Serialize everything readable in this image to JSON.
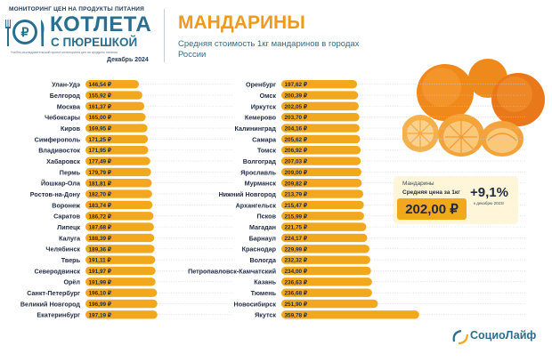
{
  "header": {
    "monitoring": "МОНИТОРИНГ ЦЕН НА ПРОДУКТЫ ПИТАНИЯ",
    "brand_title": "КОТЛЕТА",
    "brand_subtitle": "С ПЮРЕШКОЙ",
    "logo_symbol": "₽",
    "fineprint": "Учебно-исследовательский проект мониторинга цен на продукты питания",
    "date": "Декабрь 2024"
  },
  "product": {
    "title": "МАНДАРИНЫ",
    "subtitle": "Средняя стоимость 1кг мандаринов в городах России"
  },
  "info": {
    "label": "Мандарины",
    "sublabel": "Средняя цена за 1кг",
    "price": "202,00 ₽",
    "change": "+9,1%",
    "change_note": "к декабрю 2023г"
  },
  "footer": {
    "brand": "СоциоЛайф"
  },
  "colors": {
    "bar": "#f2a81d",
    "accent": "#ee9a1e",
    "brand": "#2a6f8f",
    "text": "#1f2a44"
  },
  "chart_data": {
    "type": "bar",
    "orientation": "horizontal",
    "unit": "₽",
    "columns": [
      {
        "categories": [
          "Улан-Удэ",
          "Белгород",
          "Москва",
          "Чебоксары",
          "Киров",
          "Симферополь",
          "Владивосток",
          "Хабаровск",
          "Пермь",
          "Йошкар-Ола",
          "Ростов-на-Дону",
          "Воронеж",
          "Саратов",
          "Липецк",
          "Калуга",
          "Челябинск",
          "Тверь",
          "Северодвинск",
          "Орёл",
          "Санкт-Петербург",
          "Великий Новгород",
          "Екатеринбург"
        ],
        "values": [
          146.54,
          155.92,
          161.37,
          165.0,
          169.95,
          171.25,
          171.95,
          177.49,
          179.79,
          181.81,
          182.7,
          183.74,
          186.72,
          187.68,
          188.39,
          189.36,
          191.11,
          191.97,
          191.99,
          196.1,
          196.99,
          197.19
        ],
        "labels": [
          "146,54 ₽",
          "155,92 ₽",
          "161,37 ₽",
          "165,00 ₽",
          "169,95 ₽",
          "171,25 ₽",
          "171,95 ₽",
          "177,49 ₽",
          "179,79 ₽",
          "181,81 ₽",
          "182,70 ₽",
          "183,74 ₽",
          "186,72 ₽",
          "187,68 ₽",
          "188,39 ₽",
          "189,36 ₽",
          "191,11 ₽",
          "191,97 ₽",
          "191,99 ₽",
          "196,10 ₽",
          "196,99 ₽",
          "197,19 ₽"
        ]
      },
      {
        "categories": [
          "Оренбург",
          "Омск",
          "Иркутск",
          "Кемерово",
          "Калининград",
          "Самара",
          "Томск",
          "Волгоград",
          "Ярославль",
          "Мурманск",
          "Нижний Новгород",
          "Архангельск",
          "Псков",
          "Магадан",
          "Барнаул",
          "Краснодар",
          "Вологда",
          "Петропавловск-Камчатский",
          "Казань",
          "Тюмень",
          "Новосибирск",
          "Якутск"
        ],
        "values": [
          197.62,
          200.39,
          202.05,
          203.7,
          204.16,
          205.62,
          206.92,
          207.03,
          209.0,
          209.82,
          213.79,
          215.47,
          215.99,
          221.75,
          224.17,
          229.99,
          232.32,
          234.0,
          236.63,
          236.68,
          251.9,
          359.78
        ],
        "labels": [
          "197,62 ₽",
          "200,39 ₽",
          "202,05 ₽",
          "203,70 ₽",
          "204,16 ₽",
          "205,62 ₽",
          "206,92 ₽",
          "207,03 ₽",
          "209,00 ₽",
          "209,82 ₽",
          "213,79 ₽",
          "215,47 ₽",
          "215,99 ₽",
          "221,75 ₽",
          "224,17 ₽",
          "229,99 ₽",
          "232,32 ₽",
          "234,00 ₽",
          "236,63 ₽",
          "236,68 ₽",
          "251,90 ₽",
          "359,78 ₽"
        ]
      }
    ]
  }
}
